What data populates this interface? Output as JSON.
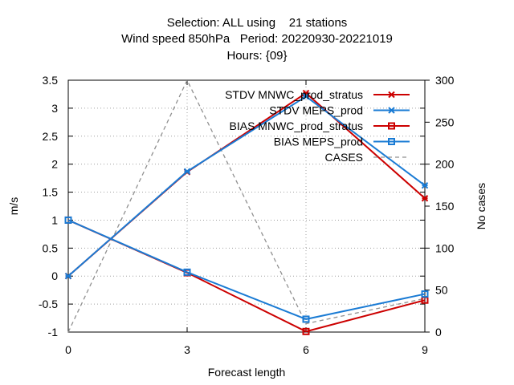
{
  "title_lines": [
    "Selection: ALL using    21 stations",
    "Wind speed 850hPa   Period: 20220930-20221019",
    "Hours: {09}"
  ],
  "colors": {
    "red": "#cc0000",
    "blue": "#1a7bd4",
    "cases": "#909090",
    "grid": "#a0a0a0",
    "axis": "#000000"
  },
  "chart_data": {
    "type": "line",
    "xlabel": "Forecast length",
    "ylabel": "m/s",
    "y2label": "No cases",
    "x": [
      0,
      3,
      6,
      9
    ],
    "x_ticks": [
      "0",
      "3",
      "6",
      "9"
    ],
    "xlim": [
      0,
      9
    ],
    "ylim": [
      -1,
      3.5
    ],
    "y_ticks": [
      "-1",
      "-0.5",
      "0",
      "0.5",
      "1",
      "1.5",
      "2",
      "2.5",
      "3",
      "3.5"
    ],
    "y2lim": [
      0,
      300
    ],
    "y2_ticks": [
      "0",
      "50",
      "100",
      "150",
      "200",
      "250",
      "300"
    ],
    "grid": true,
    "legend_position": "top-right",
    "series": [
      {
        "name": "STDV MNWC_prod_stratus",
        "axis": "y",
        "color": "red",
        "marker": "x",
        "values": [
          0.0,
          1.86,
          3.27,
          1.39
        ]
      },
      {
        "name": "STDV MEPS_prod",
        "axis": "y",
        "color": "blue",
        "marker": "x",
        "values": [
          0.0,
          1.87,
          3.21,
          1.62
        ]
      },
      {
        "name": "BIAS MNWC_prod_stratus",
        "axis": "y",
        "color": "red",
        "marker": "square",
        "values": [
          1.0,
          0.06,
          -0.99,
          -0.43
        ]
      },
      {
        "name": "BIAS MEPS_prod",
        "axis": "y",
        "color": "blue",
        "marker": "square",
        "values": [
          1.0,
          0.07,
          -0.77,
          -0.32
        ]
      },
      {
        "name": "CASES",
        "axis": "y2",
        "color": "cases",
        "marker": "none",
        "dashed": true,
        "values": [
          0,
          300,
          10,
          40
        ]
      }
    ]
  }
}
